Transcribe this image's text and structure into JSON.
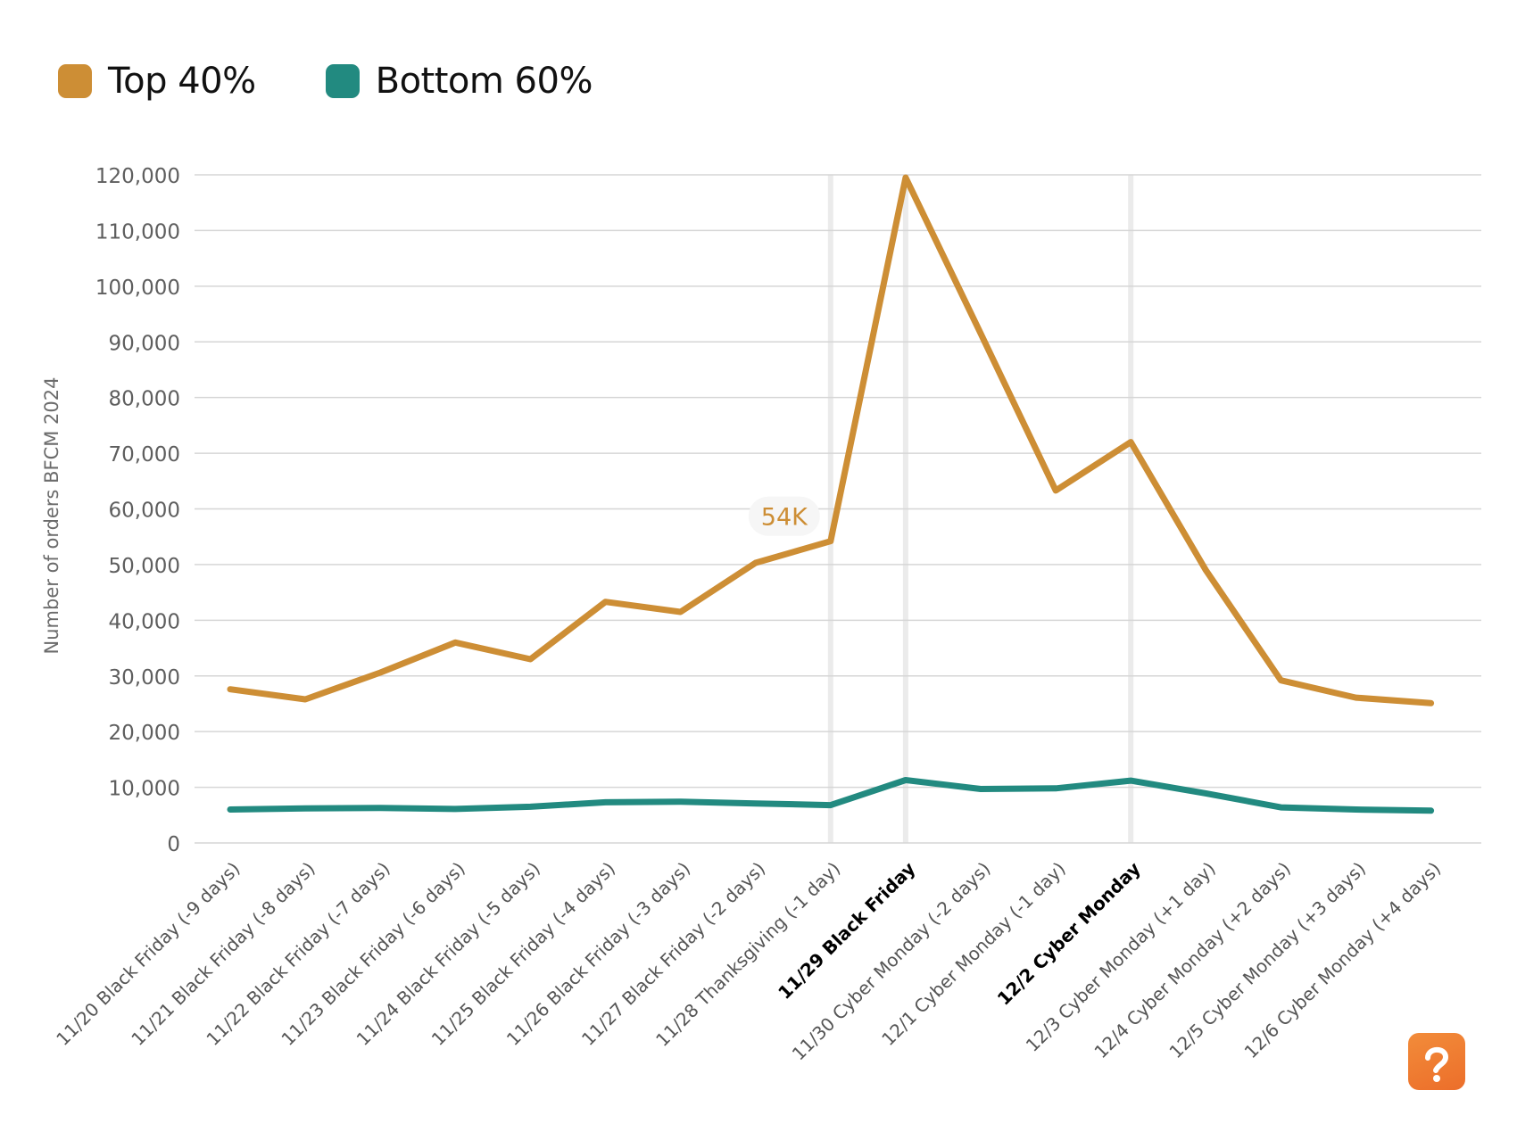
{
  "legend": [
    {
      "name": "Top 40%",
      "color": "#cd8e35"
    },
    {
      "name": "Bottom 60%",
      "color": "#228a80"
    }
  ],
  "logo": {
    "icon": "brand-logo-icon",
    "color": "#f07c33"
  },
  "chart_data": {
    "type": "line",
    "title": "",
    "xlabel": "",
    "ylabel": "Number of orders BFCM 2024",
    "ylim": [
      0,
      120000
    ],
    "yticks": [
      0,
      10000,
      20000,
      30000,
      40000,
      50000,
      60000,
      70000,
      80000,
      90000,
      100000,
      110000,
      120000
    ],
    "ytick_labels": [
      "0",
      "10,000",
      "20,000",
      "30,000",
      "40,000",
      "50,000",
      "60,000",
      "70,000",
      "80,000",
      "90,000",
      "100,000",
      "110,000",
      "120,000"
    ],
    "grid": true,
    "legend_position": "top-left",
    "categories": [
      "11/20 Black Friday (-9 days)",
      "11/21 Black Friday (-8 days)",
      "11/22 Black Friday (-7 days)",
      "11/23 Black Friday (-6 days)",
      "11/24 Black Friday (-5 days)",
      "11/25 Black Friday (-4 days)",
      "11/26 Black Friday (-3 days)",
      "11/27 Black Friday (-2 days)",
      "11/28 Thanksgiving (-1 day)",
      "11/29 Black Friday",
      "11/30 Cyber Monday (-2 days)",
      "12/1 Cyber Monday (-1 day)",
      "12/2 Cyber Monday",
      "12/3 Cyber Monday (+1 day)",
      "12/4 Cyber Monday (+2 days)",
      "12/5 Cyber Monday (+3 days)",
      "12/6 Cyber Monday (+4 days)"
    ],
    "highlighted_categories": [
      "11/28 Thanksgiving (-1 day)",
      "11/29 Black Friday",
      "12/2 Cyber Monday"
    ],
    "bold_categories": [
      "11/29 Black Friday",
      "12/2 Cyber Monday"
    ],
    "series": [
      {
        "name": "Top 40%",
        "color": "#cd8e35",
        "values": [
          27600,
          25800,
          30600,
          36000,
          33000,
          43300,
          41500,
          50300,
          54200,
          119500,
          91500,
          63300,
          72000,
          49000,
          29200,
          26100,
          25100
        ]
      },
      {
        "name": "Bottom 60%",
        "color": "#228a80",
        "values": [
          6000,
          6200,
          6300,
          6100,
          6500,
          7300,
          7400,
          7100,
          6800,
          11300,
          9700,
          9800,
          11200,
          8900,
          6400,
          6000,
          5800
        ]
      }
    ],
    "annotations": [
      {
        "text": "54K",
        "series": "Top 40%",
        "category": "11/28 Thanksgiving (-1 day)",
        "value": 54200
      }
    ]
  }
}
